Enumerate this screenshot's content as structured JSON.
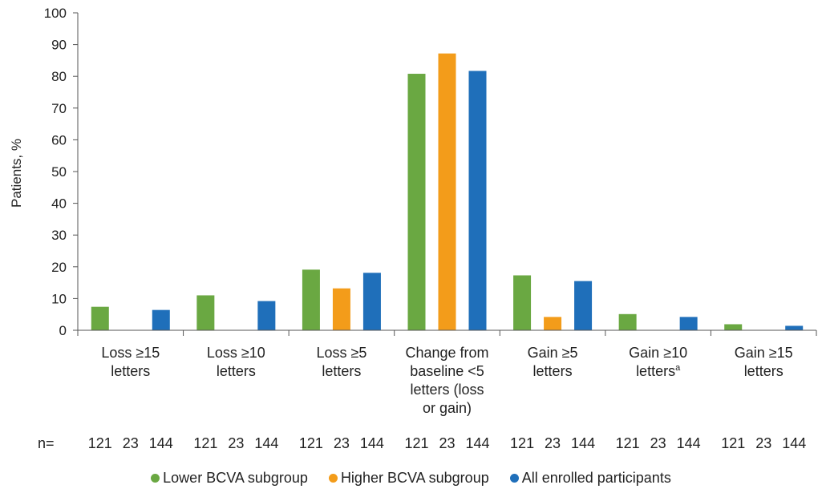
{
  "chart_data": {
    "type": "bar",
    "ylabel": "Patients, %",
    "ylim": [
      0,
      100
    ],
    "yticks": [
      0,
      10,
      20,
      30,
      40,
      50,
      60,
      70,
      80,
      90,
      100
    ],
    "categories": [
      [
        "Loss ≥15",
        "letters"
      ],
      [
        "Loss ≥10",
        "letters"
      ],
      [
        "Loss ≥5",
        "letters"
      ],
      [
        "Change from",
        "baseline <5",
        "letters (loss",
        "or gain)"
      ],
      [
        "Gain ≥5",
        "letters"
      ],
      [
        "Gain ≥10",
        "letters",
        "a"
      ],
      [
        "Gain ≥15",
        "letters"
      ]
    ],
    "series": [
      {
        "name": "Lower BCVA subgroup",
        "color": "#6aa842",
        "values": [
          7.4,
          11.0,
          19.1,
          80.8,
          17.3,
          5.1,
          1.9
        ]
      },
      {
        "name": "Higher BCVA subgroup",
        "color": "#f39c1a",
        "values": [
          0,
          0,
          13.2,
          87.2,
          4.2,
          0,
          0
        ]
      },
      {
        "name": "All enrolled participants",
        "color": "#1f6fba",
        "values": [
          6.4,
          9.2,
          18.1,
          81.7,
          15.5,
          4.2,
          1.4
        ]
      }
    ],
    "n_label": "n=",
    "n_values": [
      "121",
      "23",
      "144"
    ],
    "grid": false,
    "legend_position": "bottom"
  }
}
